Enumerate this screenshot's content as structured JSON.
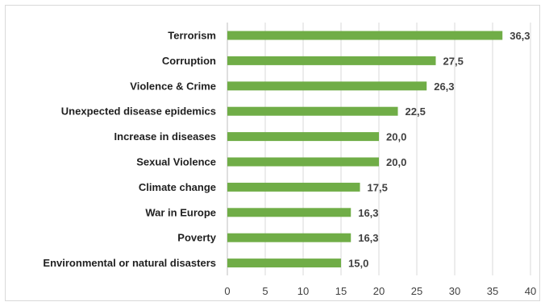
{
  "chart_data": {
    "type": "bar",
    "orientation": "horizontal",
    "categories": [
      "Terrorism",
      "Corruption",
      "Violence & Crime",
      "Unexpected disease epidemics",
      "Increase in diseases",
      "Sexual Violence",
      "Climate change",
      "War in Europe",
      "Poverty",
      "Environmental or natural disasters"
    ],
    "values": [
      36.3,
      27.5,
      26.3,
      22.5,
      20.0,
      20.0,
      17.5,
      16.3,
      16.3,
      15.0
    ],
    "value_labels": [
      "36,3",
      "27,5",
      "26,3",
      "22,5",
      "20,0",
      "20,0",
      "17,5",
      "16,3",
      "16,3",
      "15,0"
    ],
    "xlim": [
      0,
      40
    ],
    "x_ticks": [
      0,
      5,
      10,
      15,
      20,
      25,
      30,
      35,
      40
    ],
    "x_tick_labels": [
      "0",
      "5",
      "10",
      "15",
      "20",
      "25",
      "30",
      "35",
      "40"
    ],
    "grid": "vertical",
    "legend": "none",
    "bar_color": "#70ad47",
    "grid_color": "#d9d9d9",
    "title": "",
    "xlabel": "",
    "ylabel": ""
  }
}
